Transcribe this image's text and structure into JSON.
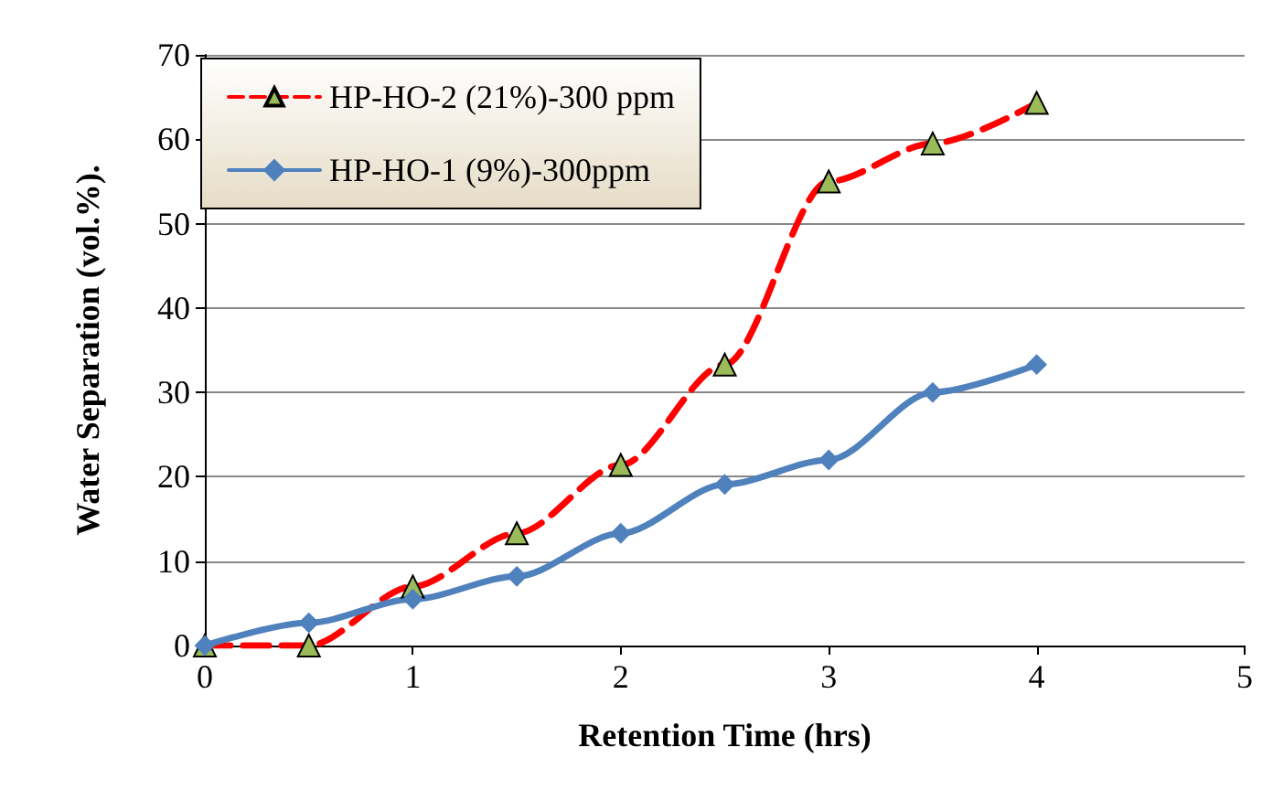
{
  "chart_data": {
    "type": "line",
    "xlabel": "Retention Time (hrs)",
    "ylabel": "Water Separation (vol.%).",
    "x": [
      0,
      0.5,
      1,
      1.5,
      2,
      2.5,
      3,
      3.5,
      4
    ],
    "series": [
      {
        "name": "HP-HO-2 (21%)-300 ppm",
        "color": "#ff0000",
        "marker": "triangle",
        "line_style": "dashed",
        "values": [
          0,
          0,
          7,
          13.3,
          21.4,
          33.3,
          55,
          59.5,
          64.3
        ]
      },
      {
        "name": "HP-HO-1 (9%)-300ppm",
        "color": "#4f81bd",
        "marker": "diamond",
        "line_style": "solid",
        "values": [
          0,
          2.7,
          5.5,
          8.2,
          13.3,
          19.1,
          22,
          30,
          33.3
        ]
      }
    ],
    "xlim": [
      0,
      5
    ],
    "xticks": [
      0,
      1,
      2,
      3,
      4,
      5
    ],
    "ylim": [
      0,
      70
    ],
    "yticks": [
      0,
      10,
      20,
      30,
      40,
      50,
      60,
      70
    ],
    "grid": "y",
    "legend": "top left"
  }
}
